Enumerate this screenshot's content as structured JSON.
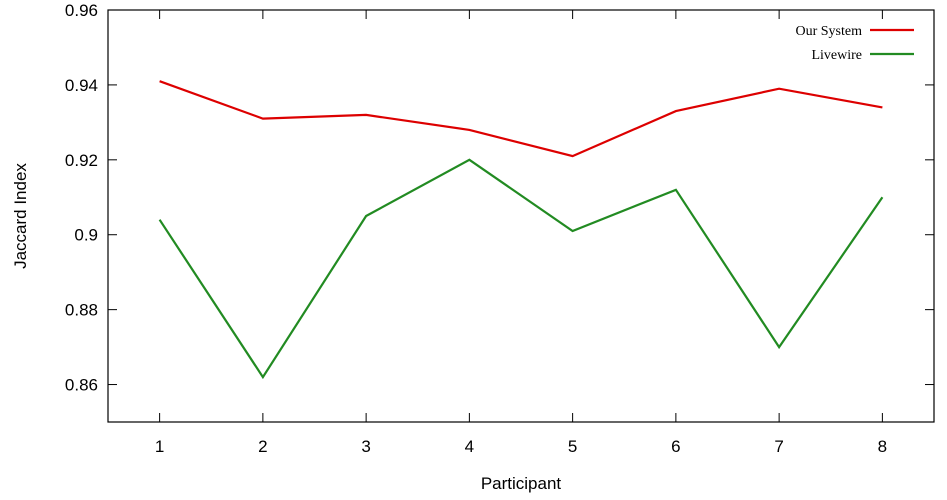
{
  "chart_data": {
    "type": "line",
    "xlabel": "Participant",
    "ylabel": "Jaccard Index",
    "xlim": [
      0.5,
      8.5
    ],
    "ylim": [
      0.85,
      0.96
    ],
    "x": [
      1,
      2,
      3,
      4,
      5,
      6,
      7,
      8
    ],
    "x_ticks": [
      "1",
      "2",
      "3",
      "4",
      "5",
      "6",
      "7",
      "8"
    ],
    "y_ticks": [
      0.86,
      0.88,
      0.9,
      0.92,
      0.94,
      0.96
    ],
    "y_tick_labels": [
      "0.86",
      "0.88",
      "0.9",
      "0.92",
      "0.94",
      "0.96"
    ],
    "grid": false,
    "legend_position": "top-right",
    "series": [
      {
        "name": "Our System",
        "color": "#dd0000",
        "values": [
          0.941,
          0.931,
          0.932,
          0.928,
          0.921,
          0.933,
          0.939,
          0.934
        ]
      },
      {
        "name": "Livewire",
        "color": "#228b22",
        "values": [
          0.904,
          0.862,
          0.905,
          0.92,
          0.901,
          0.912,
          0.87,
          0.91
        ]
      }
    ]
  }
}
